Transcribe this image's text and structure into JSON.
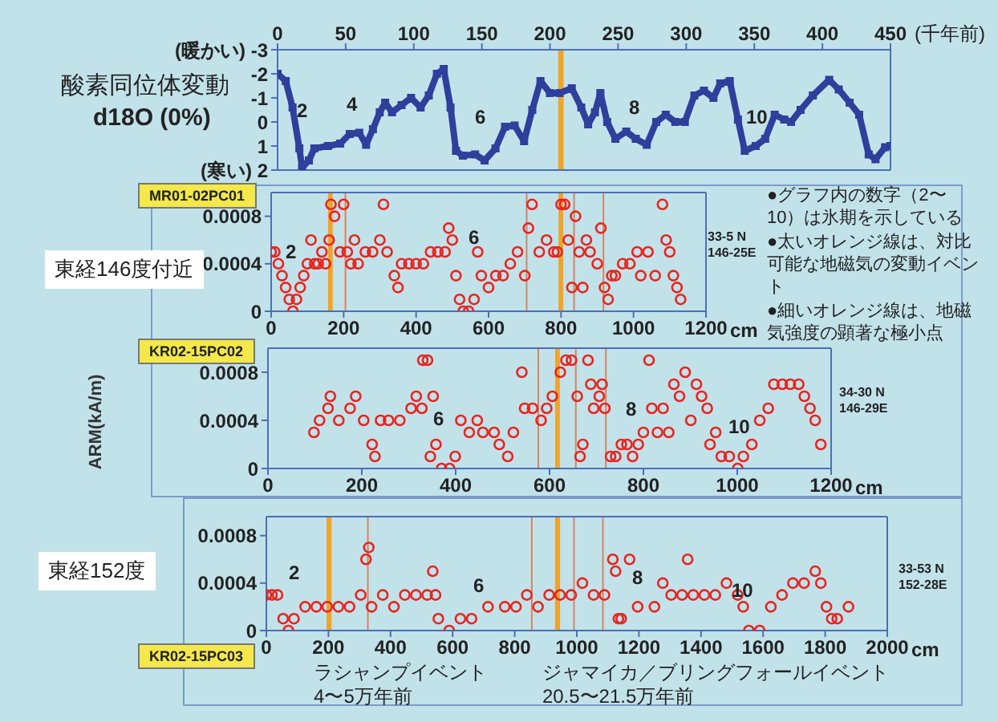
{
  "chart_data": [
    {
      "type": "line",
      "title": "酸素同位体変動",
      "subtitle": "d18O (0%)",
      "xlabel": "(千年前)",
      "marker": "square",
      "xlim": [
        0,
        450
      ],
      "xticks": [
        0,
        50,
        100,
        150,
        200,
        250,
        300,
        350,
        400,
        450
      ],
      "ylim": [
        2,
        -3
      ],
      "yticks": [
        {
          "value": -3,
          "label": "(暖かい) -3"
        },
        -2,
        -1,
        0,
        1,
        {
          "value": 2,
          "label": "(寒い) 2"
        }
      ],
      "x": [
        0,
        6,
        11,
        16,
        18,
        23,
        27,
        37,
        46,
        53,
        60,
        65,
        70,
        75,
        79,
        84,
        91,
        98,
        105,
        111,
        117,
        122,
        127,
        131,
        136,
        145,
        152,
        160,
        167,
        174,
        181,
        187,
        193,
        200,
        207,
        216,
        223,
        228,
        233,
        237,
        242,
        248,
        256,
        263,
        271,
        278,
        285,
        292,
        299,
        306,
        313,
        320,
        325,
        332,
        338,
        343,
        351,
        358,
        365,
        372,
        377,
        384,
        393,
        405,
        412,
        420,
        427,
        434,
        439,
        446,
        450
      ],
      "series": [
        {
          "color": "#2e3f9c",
          "values": [
            -2,
            -1.7,
            -0.6,
            1.1,
            1.9,
            1.6,
            1.1,
            1.0,
            0.9,
            0.5,
            0.45,
            0.95,
            0.3,
            -0.4,
            -0.8,
            -0.4,
            -0.7,
            -1.0,
            -0.6,
            -1.1,
            -2.0,
            -2.2,
            -0.6,
            1.2,
            1.4,
            1.35,
            1.6,
            1.1,
            0.2,
            0.15,
            0.8,
            -0.5,
            -1.7,
            -1.2,
            -1.2,
            -1.4,
            -0.6,
            0.1,
            -0.4,
            -1.2,
            0,
            0.7,
            0.4,
            0.7,
            0.95,
            0,
            -0.3,
            0,
            0,
            -1.1,
            -1.3,
            -1.0,
            -1.6,
            -1.7,
            -0.1,
            1.2,
            1.0,
            0.7,
            -0.3,
            -0.1,
            0,
            -0.5,
            -1.1,
            -1.75,
            -1.35,
            -0.8,
            -0.3,
            1.35,
            1.55,
            1.05,
            1.0
          ]
        }
      ],
      "bands": [
        {
          "axis": "x",
          "from": 206,
          "to": 210,
          "color": "#f0a428"
        }
      ],
      "annotations": [
        "2",
        "4",
        "6",
        "8",
        "10"
      ]
    },
    {
      "type": "scatter",
      "title": "MR01-02PC01",
      "subtitle": "33-5 N\n146-25E",
      "xlabel": "cm",
      "marker": "circle",
      "xlim": [
        0,
        1200
      ],
      "xticks": [
        0,
        200,
        400,
        600,
        800,
        1000,
        1200
      ],
      "ylim": [
        0,
        0.001
      ],
      "yticks": [
        0,
        0.0004,
        0.0008
      ],
      "x": [
        0,
        10,
        20,
        30,
        40,
        50,
        60,
        70,
        80,
        90,
        100,
        110,
        120,
        130,
        140,
        150,
        160,
        165,
        175,
        190,
        200,
        210,
        220,
        230,
        240,
        260,
        280,
        300,
        310,
        320,
        340,
        350,
        360,
        380,
        400,
        420,
        440,
        460,
        480,
        490,
        500,
        510,
        520,
        530,
        545,
        560,
        570,
        580,
        600,
        620,
        640,
        660,
        680,
        700,
        710,
        720,
        740,
        760,
        780,
        790,
        800,
        810,
        820,
        830,
        840,
        850,
        860,
        870,
        880,
        900,
        910,
        920,
        930,
        940,
        950,
        970,
        990,
        1010,
        1020,
        1040,
        1060,
        1080,
        1090,
        1100,
        1110,
        1120,
        1130
      ],
      "series": [
        {
          "color": "#e8251f",
          "values": [
            0.0005,
            0.0005,
            0.0004,
            0.0003,
            0.0002,
            0.0001,
            0,
            0.0001,
            0.0002,
            0.0003,
            0.0004,
            0.0006,
            0.0004,
            0.0004,
            0.0005,
            0.0004,
            0.0006,
            0.0009,
            0.0008,
            0.0005,
            0.0009,
            0.0005,
            0.0004,
            0.0006,
            0.0004,
            0.0005,
            0.0005,
            0.0006,
            0.0009,
            0.0005,
            0.0003,
            0.0002,
            0.0004,
            0.0004,
            0.0004,
            0.0004,
            0.0005,
            0.0005,
            0.0005,
            0.0007,
            0.0006,
            0.0003,
            0.0001,
            0,
            0,
            0.0001,
            0.0005,
            0.0003,
            0.0002,
            0.0003,
            0.0003,
            0.0004,
            0.0005,
            0.0003,
            0.0007,
            0.0009,
            0.0005,
            0.0006,
            0.0005,
            0.0005,
            0.0009,
            0.0009,
            0.0006,
            0.0002,
            0.0008,
            0.0005,
            0.0002,
            0.0006,
            0.0005,
            0.0004,
            0.0007,
            0.0002,
            0.0001,
            0.0003,
            0.0003,
            0.0004,
            0.0004,
            0.0005,
            0.0003,
            0.0005,
            0.0003,
            0.0009,
            0.0006,
            0.0005,
            0.0003,
            0.0002,
            0.0001
          ]
        }
      ],
      "bands": [
        {
          "axis": "x",
          "from": 157,
          "to": 170,
          "color": "#f0a428"
        },
        {
          "axis": "x",
          "from": 793,
          "to": 806,
          "color": "#f0a428"
        }
      ],
      "ref_lines": [
        {
          "axis": "x",
          "value": 205,
          "color": "#d9835a"
        },
        {
          "axis": "x",
          "value": 705,
          "color": "#d9835a"
        },
        {
          "axis": "x",
          "value": 836,
          "color": "#d9835a"
        },
        {
          "axis": "x",
          "value": 917,
          "color": "#d9835a"
        }
      ],
      "annotations": [
        "東経146度付近",
        "●グラフ内の数字（2〜10）は氷期を示している",
        "●太いオレンジ線は、対比可能な地磁気の変動イベント",
        "●細いオレンジ線は、地磁気強度の顕著な極小点",
        "2",
        "6"
      ]
    },
    {
      "type": "scatter",
      "title": "KR02-15PC02",
      "subtitle": "34-30 N\n146-29E",
      "xlabel": "cm",
      "ylabel": "ARM(kA/m)",
      "marker": "circle",
      "xlim": [
        0,
        1200
      ],
      "xticks": [
        0,
        200,
        400,
        600,
        800,
        1000,
        1200
      ],
      "ylim": [
        0,
        0.001
      ],
      "yticks": [
        0,
        0.0004,
        0.0008
      ],
      "x": [
        98,
        110,
        128,
        133,
        151,
        175,
        187,
        204,
        222,
        228,
        240,
        257,
        281,
        305,
        316,
        328,
        330,
        340,
        346,
        352,
        358,
        370,
        387,
        399,
        411,
        429,
        446,
        458,
        482,
        493,
        511,
        523,
        541,
        547,
        564,
        582,
        594,
        606,
        623,
        635,
        647,
        659,
        665,
        671,
        682,
        688,
        694,
        706,
        712,
        718,
        730,
        741,
        753,
        765,
        777,
        789,
        800,
        812,
        818,
        830,
        842,
        854,
        865,
        877,
        889,
        901,
        913,
        924,
        936,
        942,
        954,
        966,
        983,
        1001,
        1013,
        1031,
        1048,
        1066,
        1078,
        1096,
        1113,
        1131,
        1143,
        1155,
        1166,
        1178
      ],
      "series": [
        {
          "color": "#e8251f",
          "values": [
            0.0003,
            0.0004,
            0.0005,
            0.0006,
            0.0004,
            0.0005,
            0.0006,
            0.0004,
            0.0002,
            0.0001,
            0.0004,
            0.0004,
            0.0004,
            0.0005,
            0.0006,
            0.0005,
            0.0009,
            0.0009,
            0.0001,
            0.0006,
            0.0002,
            0,
            0,
            0.0001,
            0.0004,
            0.0003,
            0.0004,
            0.0003,
            0.0003,
            0.0002,
            0.0001,
            0.0003,
            0.0008,
            0.0005,
            0.0005,
            0.0004,
            0.0005,
            0.0006,
            0.0008,
            0.0009,
            0.0009,
            0.0006,
            0.0001,
            0.0002,
            0.0009,
            0.0007,
            0.0005,
            0.0006,
            0.0007,
            0.0005,
            0.0001,
            0.0001,
            0.0002,
            0.0002,
            0.0001,
            0.0002,
            0.0003,
            0.0009,
            0.0005,
            0.0003,
            0.0005,
            0.0003,
            0.0007,
            0.0006,
            0.0008,
            0.0004,
            0.0007,
            0.0006,
            0.0005,
            0.0002,
            0.0003,
            0.0001,
            0.0001,
            0,
            0.0001,
            0.0002,
            0.0004,
            0.0005,
            0.0007,
            0.0007,
            0.0007,
            0.0007,
            0.0006,
            0.0005,
            0.0004,
            0.0002
          ]
        }
      ],
      "bands": [
        {
          "axis": "x",
          "from": 612,
          "to": 622,
          "color": "#f0a428"
        }
      ],
      "ref_lines": [
        {
          "axis": "x",
          "value": 576,
          "color": "#d9835a"
        },
        {
          "axis": "x",
          "value": 656,
          "color": "#d9835a"
        },
        {
          "axis": "x",
          "value": 720,
          "color": "#d9835a"
        }
      ],
      "annotations": [
        "6",
        "8",
        "10"
      ]
    },
    {
      "type": "scatter",
      "title": "KR02-15PC03",
      "subtitle": "33-53 N\n152-28E",
      "xlabel": "cm",
      "marker": "circle",
      "xlim": [
        0,
        2000
      ],
      "xticks": [
        0,
        200,
        400,
        600,
        800,
        1000,
        1200,
        1400,
        1600,
        1800,
        2000
      ],
      "ylim": [
        0,
        0.00096
      ],
      "yticks": [
        0,
        0.0004,
        0.0008
      ],
      "x": [
        0,
        18,
        36,
        54,
        71,
        89,
        125,
        161,
        196,
        232,
        268,
        304,
        321,
        330,
        339,
        375,
        411,
        446,
        482,
        518,
        536,
        545,
        554,
        589,
        625,
        661,
        714,
        768,
        804,
        839,
        875,
        911,
        946,
        982,
        1018,
        1054,
        1089,
        1116,
        1125,
        1134,
        1143,
        1170,
        1196,
        1250,
        1277,
        1304,
        1339,
        1357,
        1375,
        1411,
        1446,
        1482,
        1518,
        1536,
        1554,
        1589,
        1625,
        1661,
        1696,
        1732,
        1768,
        1786,
        1804,
        1821,
        1839,
        1875
      ],
      "series": [
        {
          "color": "#e8251f",
          "values": [
            0.0003,
            0.0003,
            0.0003,
            0.0001,
            0,
            0.0001,
            0.0002,
            0.0002,
            0.0002,
            0.0002,
            0.0002,
            0.0003,
            0.0006,
            0.0007,
            0.0002,
            0.0003,
            0.0002,
            0.0003,
            0.0003,
            0.0003,
            0.0005,
            0.0003,
            0.0001,
            0,
            0.0001,
            0.0001,
            0.0002,
            0.0002,
            0.0002,
            0.0003,
            0.0002,
            0.0003,
            0.0003,
            0.0003,
            0.0004,
            0.0003,
            0.0003,
            0.0006,
            0.0005,
            0.0001,
            0.0001,
            0.0006,
            0.0002,
            0.0002,
            0.0004,
            0.0003,
            0.0003,
            0.0006,
            0.0003,
            0.0003,
            0.0003,
            0.0004,
            0.0003,
            0.0002,
            0,
            0,
            0.0002,
            0.0003,
            0.0004,
            0.0004,
            0.0005,
            0.0004,
            0.0002,
            0.0001,
            0.0001,
            0.0002
          ]
        }
      ],
      "bands": [
        {
          "axis": "x",
          "from": 194,
          "to": 210,
          "color": "#f0a428",
          "label": "ラシャンプイベント\n4〜5万年前"
        },
        {
          "axis": "x",
          "from": 930,
          "to": 946,
          "color": "#f0a428",
          "label": "ジャマイカ／ブリングフォールイベント\n20.5〜21.5万年前"
        }
      ],
      "ref_lines": [
        {
          "axis": "x",
          "value": 327,
          "color": "#d9835a"
        },
        {
          "axis": "x",
          "value": 855,
          "color": "#d9835a"
        },
        {
          "axis": "x",
          "value": 991,
          "color": "#d9835a"
        },
        {
          "axis": "x",
          "value": 1084,
          "color": "#d9835a"
        }
      ],
      "annotations": [
        "東経152度",
        "2",
        "6",
        "8",
        "10"
      ]
    }
  ]
}
